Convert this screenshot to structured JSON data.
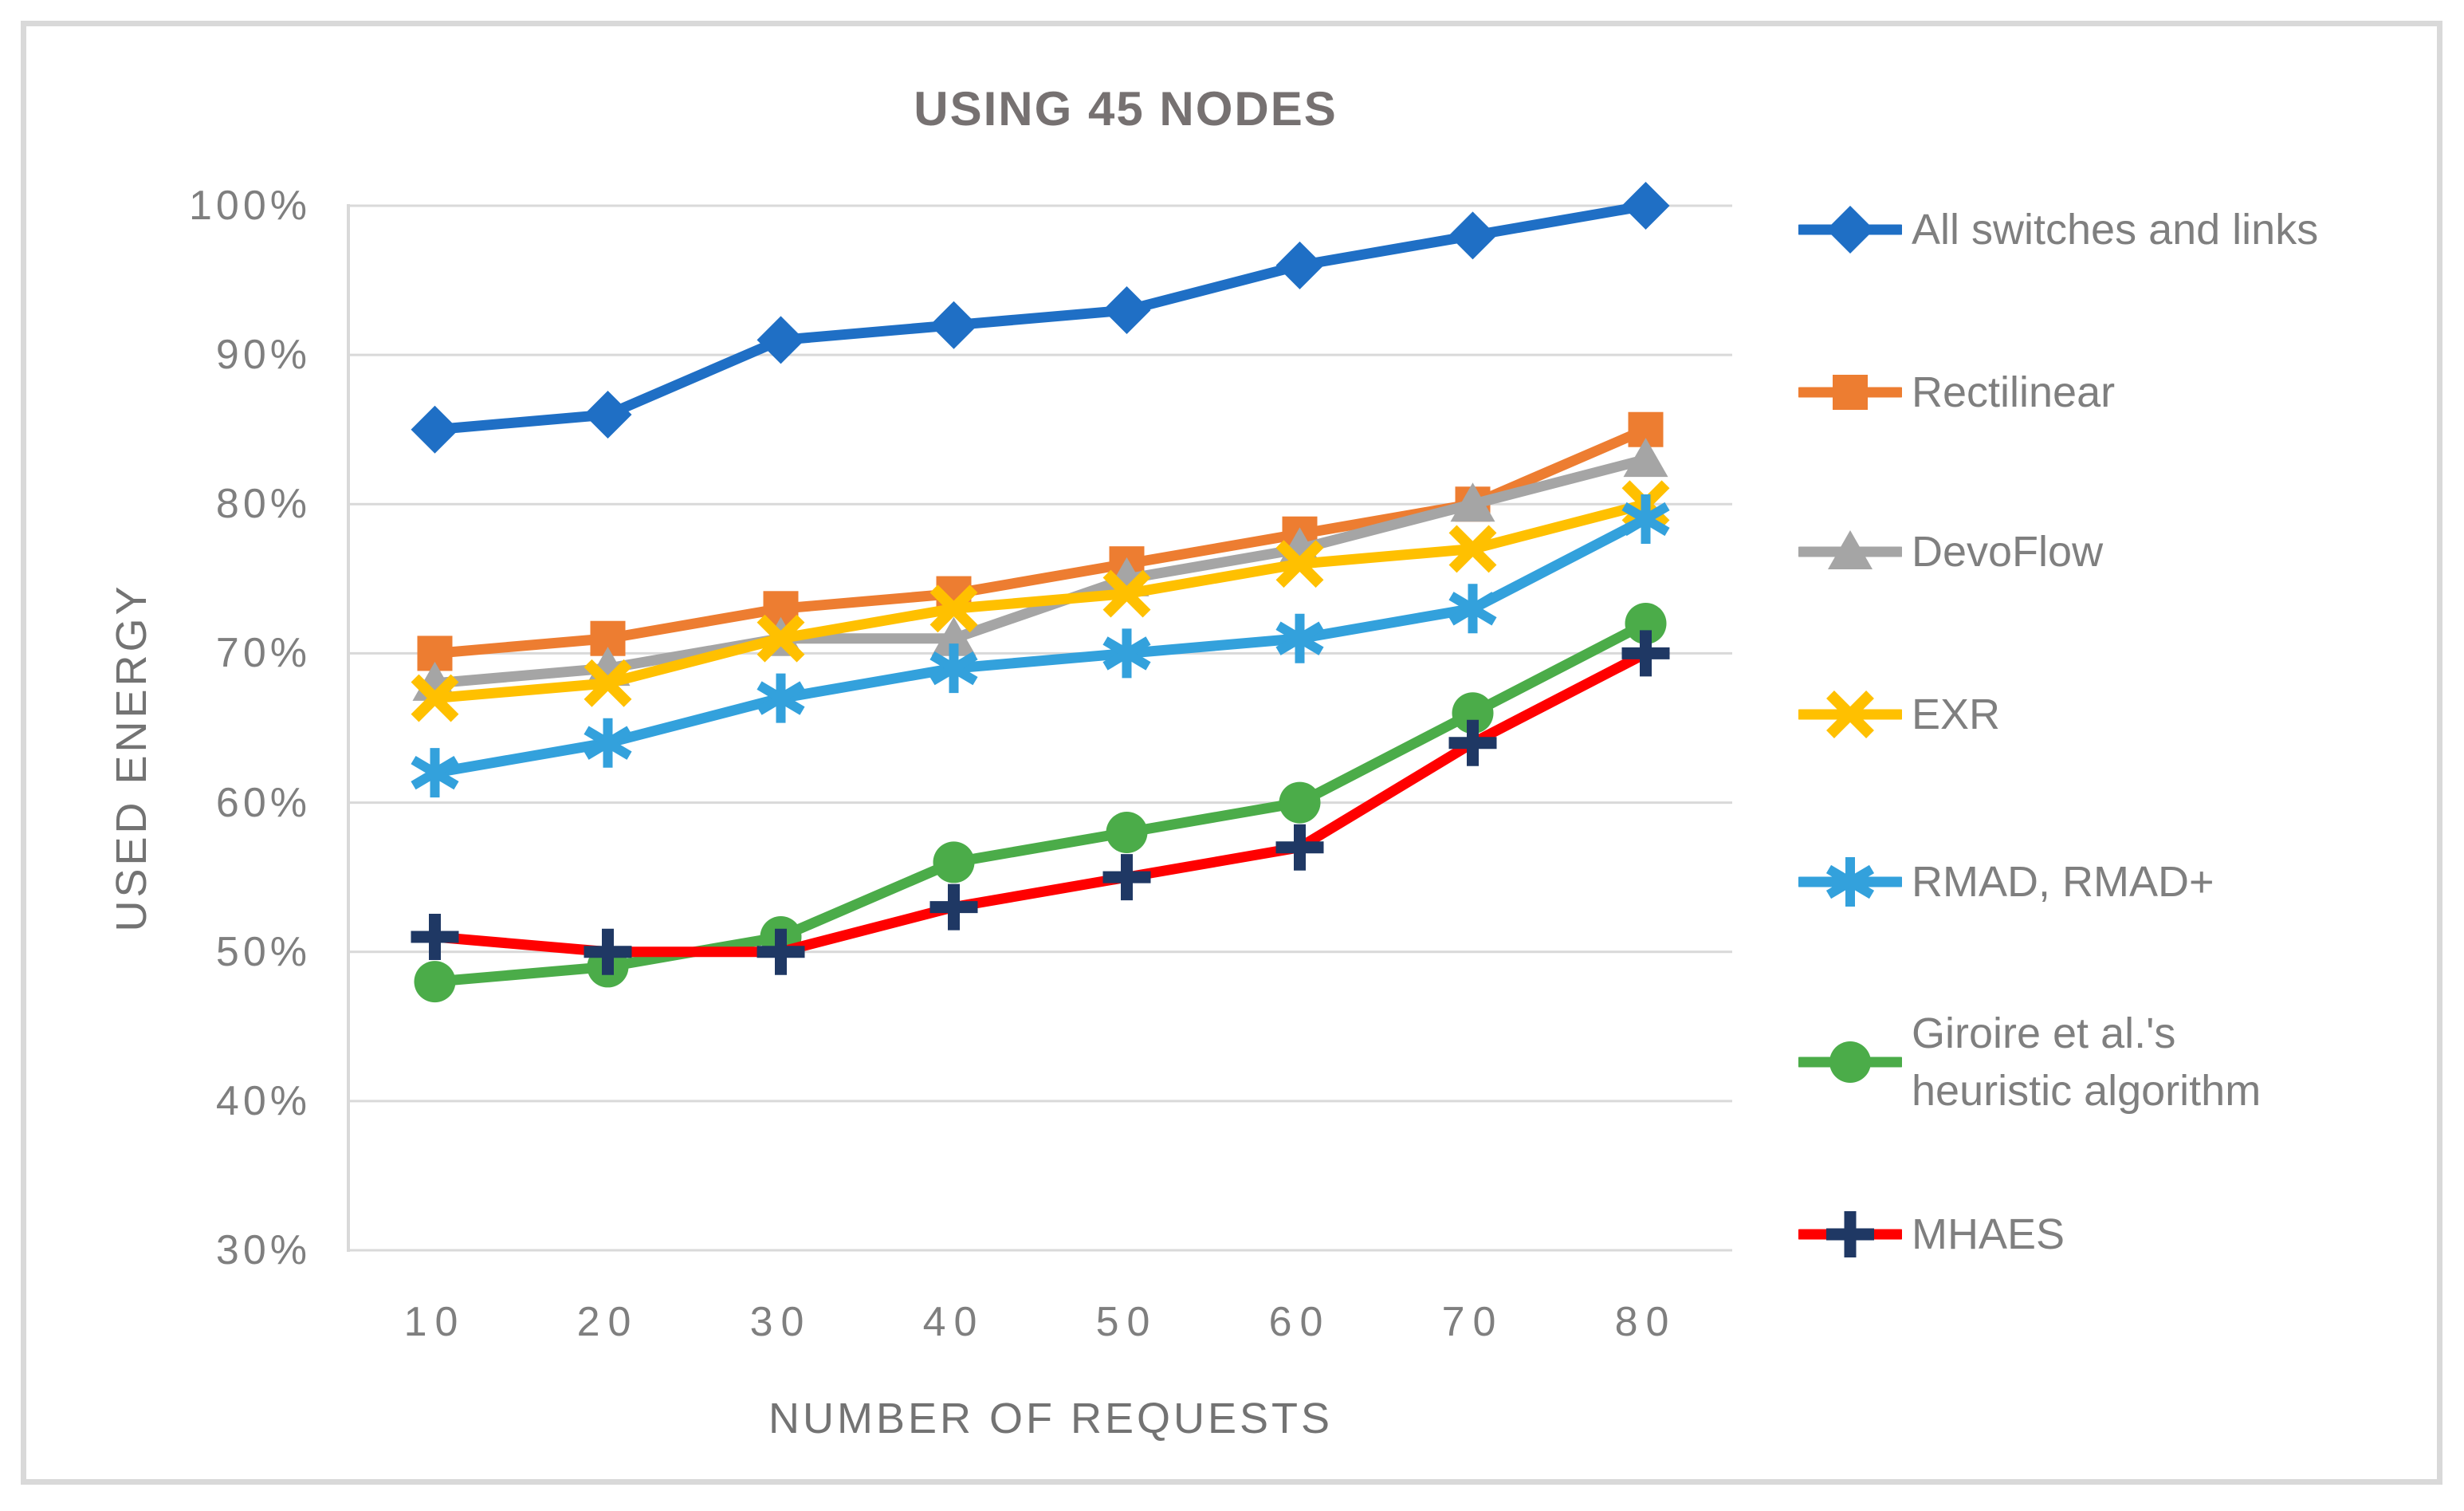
{
  "title": "USING 45 NODES",
  "y_axis": {
    "title": "USED ENERGY",
    "tick_labels": [
      "100%",
      "90%",
      "80%",
      "70%",
      "60%",
      "50%",
      "40%",
      "30%"
    ],
    "tick_values": [
      100,
      90,
      80,
      70,
      60,
      50,
      40,
      30
    ]
  },
  "x_axis": {
    "title": "NUMBER OF REQUESTS",
    "tick_labels": [
      "10",
      "20",
      "30",
      "40",
      "50",
      "60",
      "70",
      "80"
    ]
  },
  "colors": {
    "gridline": "#D9D9D9",
    "axis_line": "#D9D9D9",
    "frame_border": "#D9D9D9",
    "title_text": "#767171",
    "axis_text": "#7F7F7F",
    "background": "#FFFFFF"
  },
  "legend": {
    "position": "right",
    "items": [
      {
        "label": "All switches and links",
        "series": "All switches and links"
      },
      {
        "label": "Rectilinear",
        "series": "Rectilinear"
      },
      {
        "label": "DevoFlow",
        "series": "DevoFlow"
      },
      {
        "label": "EXR",
        "series": "EXR"
      },
      {
        "label": "RMAD, RMAD+",
        "series": "RMAD, RMAD+"
      },
      {
        "label": "Giroire et al.'s",
        "label_line2": "heuristic algorithm",
        "series": "Giroire et al.'s heuristic algorithm"
      },
      {
        "label": "MHAES",
        "series": "MHAES"
      }
    ]
  },
  "chart_data": {
    "type": "line",
    "title": "USING 45 NODES",
    "xlabel": "NUMBER OF REQUESTS",
    "ylabel": "USED ENERGY",
    "x": [
      10,
      20,
      30,
      40,
      50,
      60,
      70,
      80
    ],
    "ylim": [
      30,
      100
    ],
    "y_unit": "percent",
    "grid": true,
    "legend_position": "right",
    "series": [
      {
        "name": "All switches and links",
        "marker": "diamond",
        "color": "#1F6FC5",
        "values": [
          85,
          86,
          91,
          92,
          93,
          96,
          98,
          100
        ]
      },
      {
        "name": "Rectilinear",
        "marker": "square",
        "color": "#ED7D31",
        "values": [
          70,
          71,
          73,
          74,
          76,
          78,
          80,
          85
        ]
      },
      {
        "name": "DevoFlow",
        "marker": "triangle",
        "color": "#A5A5A5",
        "values": [
          68,
          69,
          71,
          71,
          75,
          77,
          80,
          83
        ]
      },
      {
        "name": "EXR",
        "marker": "x",
        "color": "#FFC000",
        "values": [
          67,
          68,
          71,
          73,
          74,
          76,
          77,
          80
        ]
      },
      {
        "name": "RMAD, RMAD+",
        "marker": "asterisk",
        "color": "#33A1DC",
        "values": [
          62,
          64,
          67,
          69,
          70,
          71,
          73,
          79
        ]
      },
      {
        "name": "Giroire et al.'s heuristic algorithm",
        "marker": "circle",
        "color": "#4BAC49",
        "values": [
          48,
          49,
          51,
          56,
          58,
          60,
          66,
          72
        ]
      },
      {
        "name": "MHAES",
        "marker": "plus",
        "color": "#FF0000",
        "marker_color": "#1F3864",
        "values": [
          51,
          50,
          50,
          53,
          55,
          57,
          64,
          70
        ]
      }
    ]
  }
}
